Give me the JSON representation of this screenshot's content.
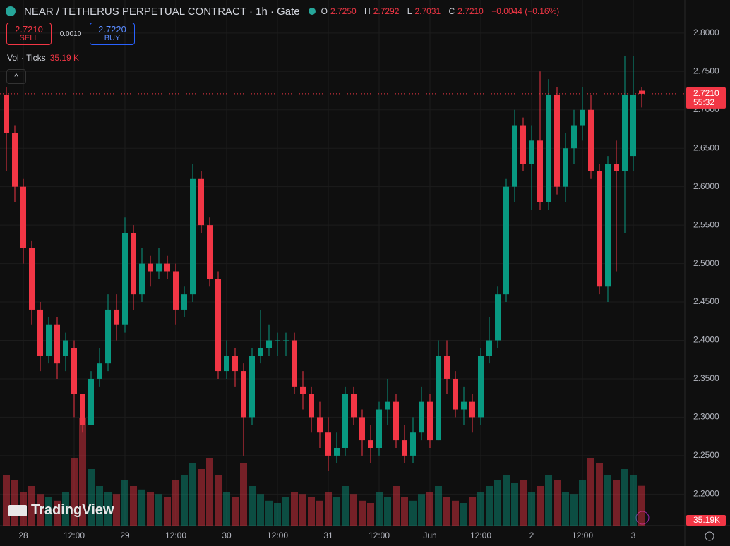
{
  "header": {
    "symbol": "NEAR / TETHERUS PERPETUAL CONTRACT · 1h · Gate",
    "ohlc": [
      {
        "key": "O",
        "value": "2.7250"
      },
      {
        "key": "H",
        "value": "2.7292"
      },
      {
        "key": "L",
        "value": "2.7031"
      },
      {
        "key": "C",
        "value": "2.7210"
      }
    ],
    "change": "−0.0044 (−0.16%)"
  },
  "trade": {
    "sell_price": "2.7210",
    "sell": "SELL",
    "spread": "0.0010",
    "buy_price": "2.7220",
    "buy": "BUY"
  },
  "volume_legend": {
    "label": "Vol · Ticks",
    "value": "35.19 K"
  },
  "brand": "TradingView",
  "chart_data": {
    "type": "candlestick",
    "categories": [
      null,
      null,
      "28",
      null,
      null,
      null,
      null,
      null,
      "12:00",
      null,
      null,
      null,
      null,
      null,
      "29",
      null,
      null,
      null,
      null,
      null,
      "12:00",
      null,
      null,
      null,
      null,
      null,
      "30",
      null,
      null,
      null,
      null,
      null,
      "12:00",
      null,
      null,
      null,
      null,
      null,
      "31",
      null,
      null,
      null,
      null,
      null,
      "12:00",
      null,
      null,
      null,
      null,
      null,
      "Jun",
      null,
      null,
      null,
      null,
      null,
      "12:00",
      null,
      null,
      null,
      null,
      null,
      "2",
      null,
      null,
      null,
      null,
      null,
      "12:00",
      null,
      null,
      null,
      null,
      null,
      "3",
      null
    ],
    "open": [
      2.72,
      2.67,
      2.6,
      2.52,
      2.44,
      2.38,
      2.42,
      2.38,
      2.39,
      2.33,
      2.29,
      2.35,
      2.37,
      2.44,
      2.42,
      2.54,
      2.46,
      2.5,
      2.49,
      2.5,
      2.49,
      2.44,
      2.46,
      2.61,
      2.55,
      2.48,
      2.36,
      2.38,
      2.36,
      2.3,
      2.38,
      2.39,
      2.4,
      2.4,
      2.4,
      2.34,
      2.33,
      2.3,
      2.28,
      2.25,
      2.26,
      2.33,
      2.3,
      2.27,
      2.26,
      2.31,
      2.32,
      2.27,
      2.25,
      2.28,
      2.32,
      2.27,
      2.38,
      2.35,
      2.31,
      2.32,
      2.3,
      2.38,
      2.4,
      2.46,
      2.6,
      2.68,
      2.63,
      2.66,
      2.58,
      2.72,
      2.6,
      2.65,
      2.68,
      2.7,
      2.62,
      2.47,
      2.63,
      2.62,
      2.64,
      2.725
    ],
    "high": [
      2.73,
      2.68,
      2.61,
      2.53,
      2.45,
      2.43,
      2.43,
      2.41,
      2.4,
      2.33,
      2.36,
      2.39,
      2.46,
      2.46,
      2.56,
      2.55,
      2.52,
      2.51,
      2.52,
      2.51,
      2.5,
      2.47,
      2.63,
      2.62,
      2.56,
      2.49,
      2.4,
      2.39,
      2.37,
      2.39,
      2.44,
      2.42,
      2.41,
      2.41,
      2.41,
      2.36,
      2.34,
      2.32,
      2.3,
      2.28,
      2.34,
      2.34,
      2.31,
      2.29,
      2.32,
      2.35,
      2.33,
      2.29,
      2.3,
      2.34,
      2.33,
      2.4,
      2.4,
      2.36,
      2.34,
      2.33,
      2.39,
      2.43,
      2.47,
      2.61,
      2.7,
      2.69,
      2.68,
      2.75,
      2.74,
      2.73,
      2.67,
      2.7,
      2.73,
      2.72,
      2.63,
      2.64,
      2.66,
      2.77,
      2.77,
      2.7292
    ],
    "low": [
      2.62,
      2.58,
      2.5,
      2.42,
      2.36,
      2.37,
      2.35,
      2.36,
      2.3,
      2.28,
      2.29,
      2.34,
      2.36,
      2.4,
      2.41,
      2.44,
      2.45,
      2.47,
      2.48,
      2.48,
      2.42,
      2.43,
      2.45,
      2.54,
      2.47,
      2.35,
      2.35,
      2.34,
      2.25,
      2.29,
      2.37,
      2.38,
      2.38,
      2.38,
      2.33,
      2.31,
      2.28,
      2.26,
      2.23,
      2.24,
      2.25,
      2.29,
      2.25,
      2.24,
      2.25,
      2.29,
      2.26,
      2.24,
      2.24,
      2.27,
      2.26,
      2.27,
      2.33,
      2.3,
      2.29,
      2.28,
      2.29,
      2.37,
      2.39,
      2.45,
      2.58,
      2.62,
      2.57,
      2.57,
      2.57,
      2.59,
      2.58,
      2.63,
      2.66,
      2.61,
      2.46,
      2.45,
      2.49,
      2.54,
      2.62,
      2.7031
    ],
    "close": [
      2.67,
      2.6,
      2.52,
      2.44,
      2.38,
      2.42,
      2.37,
      2.4,
      2.33,
      2.29,
      2.35,
      2.37,
      2.44,
      2.42,
      2.54,
      2.46,
      2.5,
      2.49,
      2.5,
      2.49,
      2.44,
      2.46,
      2.61,
      2.55,
      2.48,
      2.36,
      2.38,
      2.36,
      2.3,
      2.38,
      2.39,
      2.4,
      2.4,
      2.4,
      2.34,
      2.33,
      2.3,
      2.28,
      2.25,
      2.26,
      2.33,
      2.3,
      2.27,
      2.26,
      2.31,
      2.32,
      2.27,
      2.25,
      2.28,
      2.32,
      2.27,
      2.38,
      2.35,
      2.31,
      2.32,
      2.3,
      2.38,
      2.4,
      2.46,
      2.6,
      2.68,
      2.63,
      2.66,
      2.58,
      2.72,
      2.6,
      2.65,
      2.68,
      2.7,
      2.62,
      2.47,
      2.63,
      2.62,
      2.72,
      2.72,
      2.721
    ],
    "volume": [
      45,
      40,
      30,
      35,
      28,
      25,
      22,
      30,
      60,
      95,
      50,
      35,
      30,
      28,
      40,
      35,
      32,
      30,
      28,
      25,
      40,
      45,
      55,
      50,
      60,
      45,
      30,
      25,
      55,
      35,
      28,
      22,
      20,
      25,
      30,
      28,
      25,
      22,
      30,
      25,
      35,
      28,
      22,
      20,
      30,
      25,
      35,
      25,
      22,
      28,
      30,
      35,
      25,
      22,
      20,
      25,
      30,
      35,
      40,
      45,
      38,
      40,
      30,
      35,
      45,
      40,
      30,
      28,
      40,
      60,
      55,
      45,
      40,
      50,
      45,
      35.19
    ],
    "last_volume_label": "35.19K",
    "vlim": [
      0,
      100
    ],
    "up_color": "#089981",
    "down_color": "#f23645",
    "ylim": [
      2.159,
      2.843
    ],
    "yticks": [
      {
        "value": 2.2,
        "label": "2.2000"
      },
      {
        "value": 2.25,
        "label": "2.2500"
      },
      {
        "value": 2.3,
        "label": "2.3000"
      },
      {
        "value": 2.35,
        "label": "2.3500"
      },
      {
        "value": 2.4,
        "label": "2.4000"
      },
      {
        "value": 2.45,
        "label": "2.4500"
      },
      {
        "value": 2.5,
        "label": "2.5000"
      },
      {
        "value": 2.55,
        "label": "2.5500"
      },
      {
        "value": 2.6,
        "label": "2.6000"
      },
      {
        "value": 2.65,
        "label": "2.6500"
      },
      {
        "value": 2.7,
        "label": "2.7000"
      },
      {
        "value": 2.75,
        "label": "2.7500"
      },
      {
        "value": 2.8,
        "label": "2.8000"
      }
    ],
    "last_price": {
      "value": 2.721,
      "label": "2.7210"
    },
    "countdown": "55:32",
    "grid": true
  }
}
